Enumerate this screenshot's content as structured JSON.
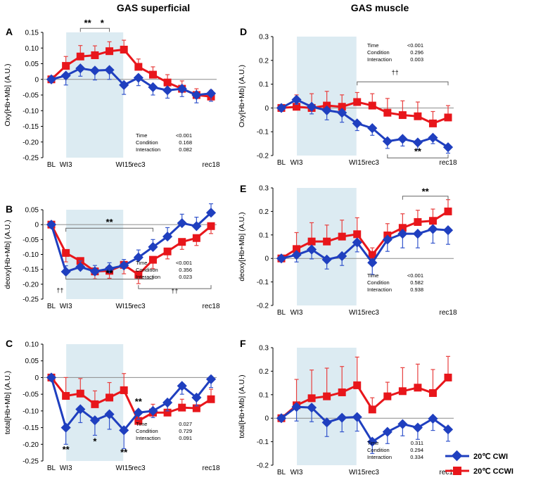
{
  "colors": {
    "cwi": "#1f3fbf",
    "ccwi": "#e8161b",
    "shade": "#dcebf2",
    "zero_line": "#8c8c8c",
    "err_cwi": "#3355cc",
    "err_ccwi": "#e8403f"
  },
  "titles": {
    "left": "GAS superficial",
    "right": "GAS muscle"
  },
  "legend": {
    "cwi": "20℃ CWI",
    "ccwi": "20℃ CCWI"
  },
  "chart_data": [
    {
      "id": "A",
      "type": "line",
      "title": "GAS superficial",
      "ylabel": "Oxy[Hb+Mb] (A.U.)",
      "ylim": [
        -0.25,
        0.15
      ],
      "yticks": [
        "0.15",
        "0.10",
        "0.05",
        "0",
        "-0.05",
        "-0.10",
        "-0.15",
        "-0.20",
        "-0.25"
      ],
      "ytick_values": [
        0.15,
        0.1,
        0.05,
        0,
        -0.05,
        -0.1,
        -0.15,
        -0.2,
        -0.25
      ],
      "xticks": [
        {
          "label": "BL",
          "i": 0
        },
        {
          "label": "WI3",
          "i": 1
        },
        {
          "label": "WI15",
          "i": 5
        },
        {
          "label": "rec3",
          "i": 6
        },
        {
          "label": "rec18",
          "i": 11
        }
      ],
      "shade_range": [
        1,
        5
      ],
      "stats": [
        [
          "Time",
          "<0.001"
        ],
        [
          "Condition",
          "0.168"
        ],
        [
          "Interaction",
          "0.082"
        ]
      ],
      "series": [
        {
          "name": "20℃ CWI",
          "values": [
            0,
            0.012,
            0.035,
            0.028,
            0.03,
            -0.018,
            0.005,
            -0.025,
            -0.035,
            -0.03,
            -0.05,
            -0.045
          ],
          "errors": [
            0,
            0.03,
            0.025,
            0.03,
            0.03,
            0.03,
            0.025,
            0.025,
            0.025,
            0.025,
            0.025,
            0.025
          ]
        },
        {
          "name": "20℃ CCWI",
          "values": [
            0,
            0.043,
            0.073,
            0.077,
            0.09,
            0.095,
            0.04,
            0.015,
            -0.01,
            -0.03,
            -0.05,
            -0.055
          ],
          "errors": [
            0,
            0.03,
            0.035,
            0.03,
            0.03,
            0.03,
            0.025,
            0.025,
            0.025,
            0.025,
            0.02,
            0.02
          ]
        }
      ],
      "annotations": [
        {
          "type": "bracket",
          "from": 2,
          "to": 4,
          "y": 0.163,
          "tick": "down"
        },
        {
          "type": "sig",
          "text": "**",
          "i": 2.5,
          "y": 0.17
        },
        {
          "type": "sig",
          "text": "*",
          "i": 3.5,
          "y": 0.17
        }
      ]
    },
    {
      "id": "B",
      "type": "line",
      "title": "GAS superficial",
      "ylabel": "deoxy[Hb+Mb] (A.U.)",
      "ylim": [
        -0.25,
        0.05
      ],
      "yticks": [
        "0.05",
        "0",
        "-0.05",
        "-0.10",
        "-0.15",
        "-0.20",
        "-0.25"
      ],
      "ytick_values": [
        0.05,
        0,
        -0.05,
        -0.1,
        -0.15,
        -0.2,
        -0.25
      ],
      "xticks": [
        {
          "label": "BL",
          "i": 0
        },
        {
          "label": "WI3",
          "i": 1
        },
        {
          "label": "WI15",
          "i": 5
        },
        {
          "label": "rec3",
          "i": 6
        },
        {
          "label": "rec18",
          "i": 11
        }
      ],
      "shade_range": [
        1,
        5
      ],
      "stats": [
        [
          "Time",
          "<0.001"
        ],
        [
          "Condition",
          "0.356"
        ],
        [
          "Interaction",
          "0.023"
        ]
      ],
      "series": [
        {
          "name": "20℃ CWI",
          "values": [
            0,
            -0.158,
            -0.142,
            -0.157,
            -0.148,
            -0.137,
            -0.11,
            -0.075,
            -0.04,
            0.005,
            -0.005,
            0.04
          ],
          "errors": [
            0,
            0.02,
            0.02,
            0.02,
            0.02,
            0.02,
            0.025,
            0.025,
            0.03,
            0.03,
            0.03,
            0.03
          ]
        },
        {
          "name": "20℃ CCWI",
          "values": [
            0,
            -0.095,
            -0.122,
            -0.157,
            -0.155,
            -0.135,
            -0.168,
            -0.118,
            -0.09,
            -0.058,
            -0.045,
            -0.005
          ],
          "errors": [
            0,
            0.03,
            0.025,
            0.025,
            0.025,
            0.03,
            0.03,
            0.03,
            0.025,
            0.025,
            0.025,
            0.025
          ]
        }
      ],
      "annotations": [
        {
          "type": "bracket",
          "from": 1,
          "to": 7,
          "y": -0.012,
          "tick": "down"
        },
        {
          "type": "sig",
          "text": "**",
          "i": 4,
          "y": -0.002
        },
        {
          "type": "bracket",
          "from": 1,
          "to": 7,
          "y": -0.183,
          "tick": "up"
        },
        {
          "type": "sig",
          "text": "**",
          "i": 4,
          "y": -0.173
        },
        {
          "type": "bracket",
          "from": 6,
          "to": 11,
          "y": -0.215,
          "tick": "up"
        },
        {
          "type": "dag",
          "text": "††",
          "i": 8.5,
          "y": -0.23
        },
        {
          "type": "dag",
          "text": "††",
          "i": 0.6,
          "y": -0.228
        }
      ]
    },
    {
      "id": "C",
      "type": "line",
      "title": "GAS superficial",
      "ylabel": "total[Hb+Mb] (A.U.)",
      "ylim": [
        -0.25,
        0.1
      ],
      "yticks": [
        "0.10",
        "0.05",
        "0",
        "-0.05",
        "-0.10",
        "-0.15",
        "-0.20",
        "-0.25"
      ],
      "ytick_values": [
        0.1,
        0.05,
        0,
        -0.05,
        -0.1,
        -0.15,
        -0.2,
        -0.25
      ],
      "xticks": [
        {
          "label": "BL",
          "i": 0
        },
        {
          "label": "WI3",
          "i": 1
        },
        {
          "label": "WI15",
          "i": 5
        },
        {
          "label": "rec3",
          "i": 6
        },
        {
          "label": "rec18",
          "i": 11
        }
      ],
      "shade_range": [
        1,
        5
      ],
      "stats": [
        [
          "Time",
          "0.027"
        ],
        [
          "Condition",
          "0.729"
        ],
        [
          "Interaction",
          "0.091"
        ]
      ],
      "series": [
        {
          "name": "20℃ CWI",
          "values": [
            0,
            -0.15,
            -0.095,
            -0.128,
            -0.11,
            -0.158,
            -0.105,
            -0.1,
            -0.075,
            -0.025,
            -0.06,
            -0.005
          ],
          "errors": [
            0,
            0.05,
            0.04,
            0.045,
            0.045,
            0.055,
            0.02,
            0.02,
            0.025,
            0.025,
            0.025,
            0.025
          ]
        },
        {
          "name": "20℃ CCWI",
          "values": [
            0,
            -0.055,
            -0.048,
            -0.08,
            -0.06,
            -0.038,
            -0.13,
            -0.105,
            -0.105,
            -0.09,
            -0.092,
            -0.065
          ],
          "errors": [
            0,
            0.055,
            0.045,
            0.04,
            0.045,
            0.05,
            0.025,
            0.025,
            0.025,
            0.025,
            0.03,
            0.03
          ]
        }
      ],
      "annotations": [
        {
          "type": "sig",
          "text": "**",
          "i": 1,
          "y": -0.225
        },
        {
          "type": "sig",
          "text": "*",
          "i": 3,
          "y": -0.2
        },
        {
          "type": "sig",
          "text": "**",
          "i": 5,
          "y": -0.233
        },
        {
          "type": "sig",
          "text": "**",
          "i": 6,
          "y": -0.081
        }
      ]
    },
    {
      "id": "D",
      "type": "line",
      "title": "GAS muscle",
      "ylabel": "Oxy[Hb+Mb] (A.U.)",
      "ylim": [
        -0.2,
        0.3
      ],
      "yticks": [
        "0.3",
        "0.2",
        "0.1",
        "0",
        "-0.1",
        "-0.2"
      ],
      "ytick_values": [
        0.3,
        0.2,
        0.1,
        0,
        -0.1,
        -0.2
      ],
      "xticks": [
        {
          "label": "BL",
          "i": 0
        },
        {
          "label": "WI3",
          "i": 1
        },
        {
          "label": "WI15",
          "i": 5
        },
        {
          "label": "rec3",
          "i": 6
        },
        {
          "label": "rec18",
          "i": 11
        }
      ],
      "shade_range": [
        1,
        5
      ],
      "stats": [
        [
          "Time",
          "<0.001"
        ],
        [
          "Condition",
          "0.296"
        ],
        [
          "Interaction",
          "0.003"
        ]
      ],
      "series": [
        {
          "name": "20℃ CWI",
          "values": [
            0,
            0.035,
            0.005,
            -0.01,
            -0.02,
            -0.065,
            -0.085,
            -0.14,
            -0.13,
            -0.145,
            -0.125,
            -0.165
          ],
          "errors": [
            0,
            0.02,
            0.03,
            0.04,
            0.04,
            0.03,
            0.03,
            0.03,
            0.03,
            0.03,
            0.025,
            0.025
          ]
        },
        {
          "name": "20℃ CCWI",
          "values": [
            0,
            0.005,
            0.0,
            0.01,
            0.005,
            0.025,
            0.01,
            -0.02,
            -0.03,
            -0.035,
            -0.065,
            -0.04
          ],
          "errors": [
            0,
            0.05,
            0.06,
            0.06,
            0.05,
            0.04,
            0.05,
            0.06,
            0.06,
            0.06,
            0.05,
            0.05
          ]
        }
      ],
      "annotations": [
        {
          "type": "bracket",
          "from": 5,
          "to": 11,
          "y": 0.11,
          "tick": "down"
        },
        {
          "type": "dag",
          "text": "††",
          "i": 7.5,
          "y": 0.14
        },
        {
          "type": "bracket",
          "from": 7,
          "to": 11,
          "y": -0.21,
          "tick": "up"
        },
        {
          "type": "sig",
          "text": "**",
          "i": 9,
          "y": -0.195
        }
      ]
    },
    {
      "id": "E",
      "type": "line",
      "title": "GAS muscle",
      "ylabel": "deoxy[Hb+Mb] (A.U.)",
      "ylim": [
        -0.2,
        0.3
      ],
      "yticks": [
        "0.3",
        "0.2",
        "0.1",
        "0",
        "-0.1",
        "-0.2"
      ],
      "ytick_values": [
        0.3,
        0.2,
        0.1,
        0,
        -0.1,
        -0.2
      ],
      "xticks": [
        {
          "label": "BL",
          "i": 0
        },
        {
          "label": "WI3",
          "i": 1
        },
        {
          "label": "WI15",
          "i": 5
        },
        {
          "label": "rec3",
          "i": 6
        },
        {
          "label": "rec18",
          "i": 11
        }
      ],
      "shade_range": [
        1,
        5
      ],
      "stats": [
        [
          "Time",
          "<0.001"
        ],
        [
          "Condition",
          "0.582"
        ],
        [
          "Interaction",
          "0.938"
        ]
      ],
      "series": [
        {
          "name": "20℃ CWI",
          "values": [
            0,
            0.015,
            0.038,
            -0.005,
            0.01,
            0.068,
            -0.018,
            0.08,
            0.105,
            0.105,
            0.125,
            0.12
          ],
          "errors": [
            0,
            0.03,
            0.04,
            0.04,
            0.04,
            0.04,
            0.05,
            0.05,
            0.06,
            0.06,
            0.06,
            0.06
          ]
        },
        {
          "name": "20℃ CCWI",
          "values": [
            0,
            0.04,
            0.072,
            0.072,
            0.093,
            0.103,
            0.015,
            0.098,
            0.13,
            0.155,
            0.16,
            0.2
          ],
          "errors": [
            0,
            0.07,
            0.08,
            0.07,
            0.07,
            0.07,
            0.03,
            0.05,
            0.06,
            0.05,
            0.05,
            0.05
          ]
        }
      ],
      "annotations": [
        {
          "type": "bracket",
          "from": 8,
          "to": 11,
          "y": 0.265,
          "tick": "down"
        },
        {
          "type": "sig",
          "text": "**",
          "i": 9.5,
          "y": 0.272
        }
      ]
    },
    {
      "id": "F",
      "type": "line",
      "title": "GAS muscle",
      "ylabel": "total[Hb+Mb] (A.U.)",
      "ylim": [
        -0.2,
        0.3
      ],
      "yticks": [
        "0.3",
        "0.2",
        "0.1",
        "0",
        "-0.1",
        "-0.2"
      ],
      "ytick_values": [
        0.3,
        0.2,
        0.1,
        0,
        -0.1,
        -0.2
      ],
      "xticks": [
        {
          "label": "BL",
          "i": 0
        },
        {
          "label": "WI3",
          "i": 1
        },
        {
          "label": "WI15",
          "i": 5
        },
        {
          "label": "rec3",
          "i": 6
        },
        {
          "label": "rec18",
          "i": 11
        }
      ],
      "shade_range": [
        1,
        5
      ],
      "stats": [
        [
          "Time",
          "0.311"
        ],
        [
          "Condition",
          "0.294"
        ],
        [
          "Interaction",
          "0.334"
        ]
      ],
      "series": [
        {
          "name": "20℃ CWI",
          "values": [
            0,
            0.048,
            0.045,
            -0.018,
            0.002,
            0.005,
            -0.1,
            -0.058,
            -0.025,
            -0.04,
            -0.002,
            -0.048
          ],
          "errors": [
            0,
            0.06,
            0.06,
            0.06,
            0.06,
            0.06,
            0.05,
            0.05,
            0.05,
            0.05,
            0.05,
            0.05
          ]
        },
        {
          "name": "20℃ CCWI",
          "values": [
            0,
            0.055,
            0.085,
            0.093,
            0.11,
            0.14,
            0.037,
            0.093,
            0.115,
            0.13,
            0.107,
            0.173
          ],
          "errors": [
            0,
            0.11,
            0.12,
            0.12,
            0.11,
            0.12,
            0.05,
            0.06,
            0.1,
            0.1,
            0.1,
            0.09
          ]
        }
      ],
      "annotations": []
    }
  ]
}
